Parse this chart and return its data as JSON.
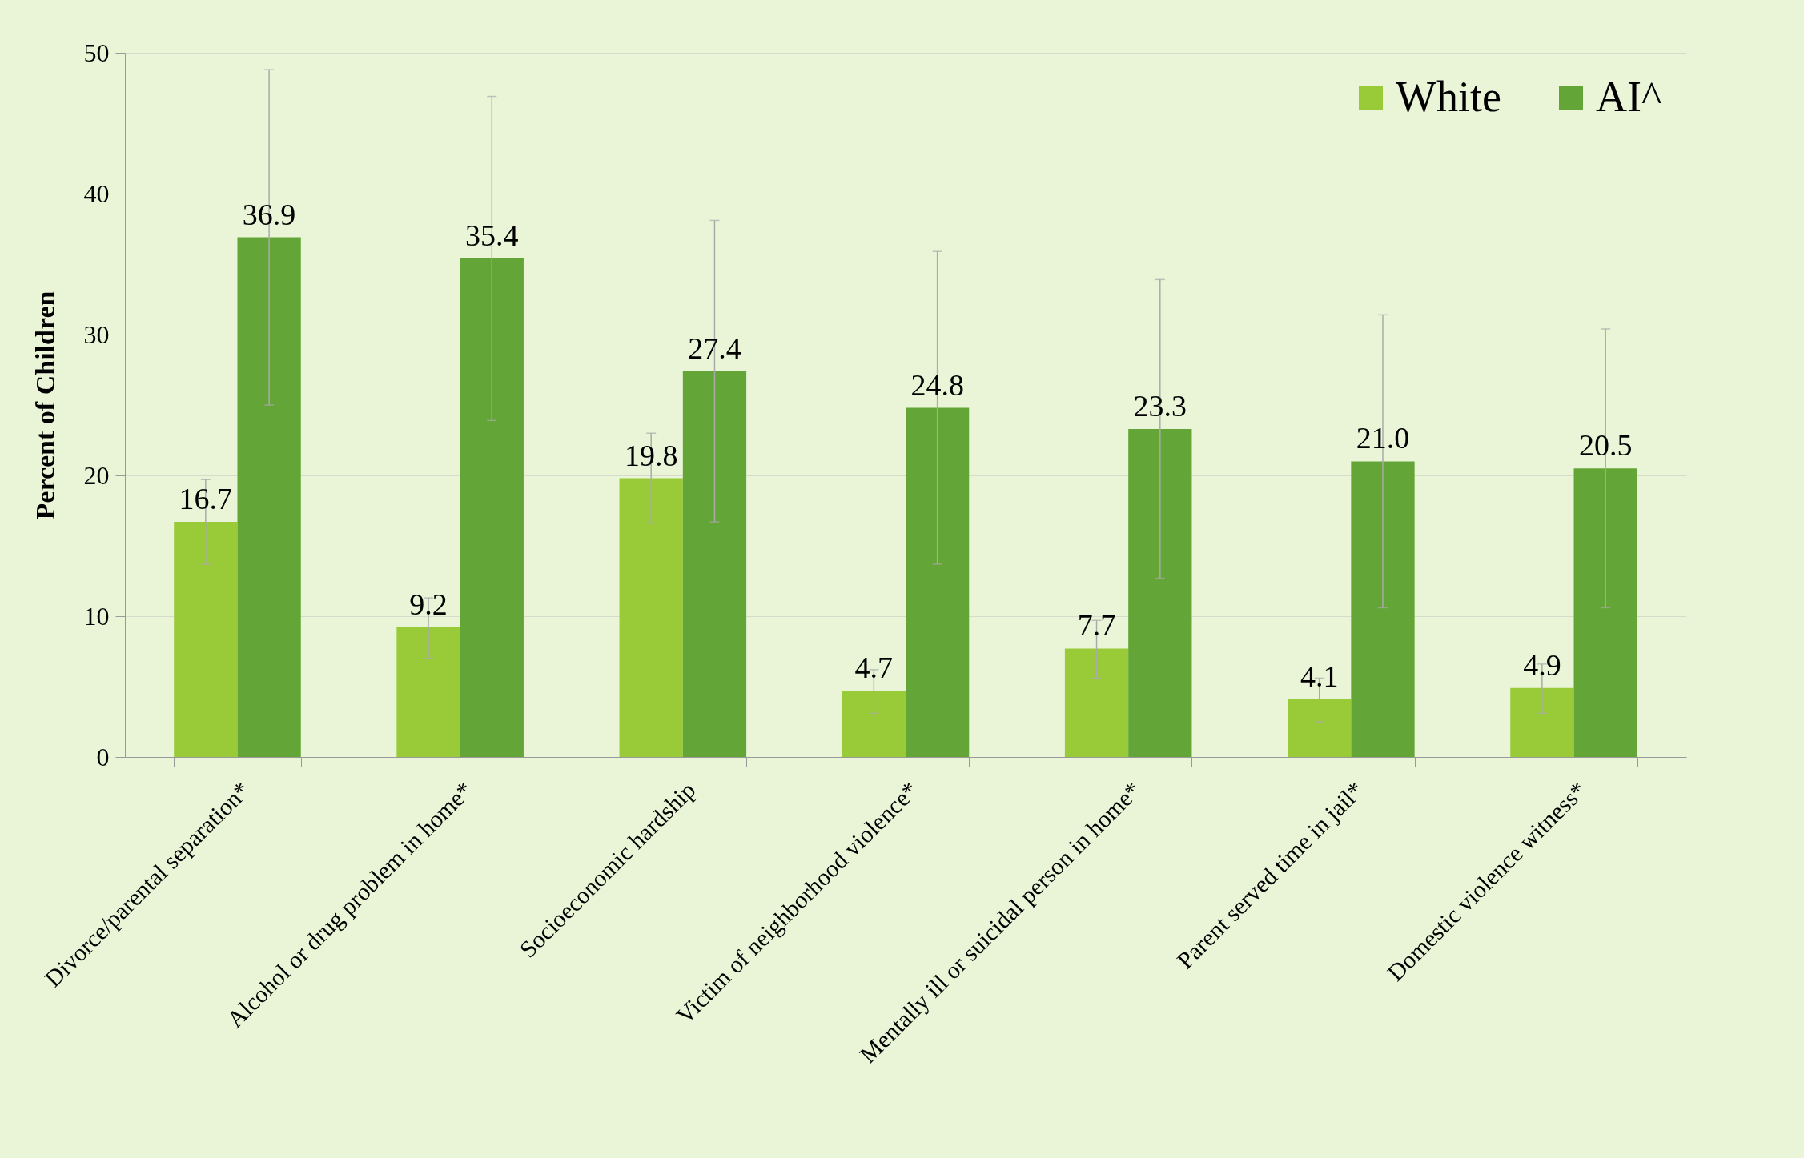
{
  "chart_data": {
    "type": "bar",
    "ylabel": "Percent of Children",
    "categories": [
      "Divorce/parental separation*",
      "Alcohol or drug problem in home*",
      "Socioeconomic hardship",
      "Victim of neighborhood violence*",
      "Mentally ill or suicidal person in home*",
      "Parent served time in jail*",
      "Domestic violence witness*"
    ],
    "series": [
      {
        "name": "White",
        "color": "#99cb38",
        "values": [
          16.7,
          9.2,
          19.8,
          4.7,
          7.7,
          4.1,
          4.9
        ],
        "value_labels": [
          "16.7",
          "9.2",
          "19.8",
          "4.7",
          "7.7",
          "4.1",
          "4.9"
        ],
        "errors": [
          [
            13.7,
            19.7
          ],
          [
            7.0,
            11.3
          ],
          [
            16.6,
            23.0
          ],
          [
            3.1,
            6.2
          ],
          [
            5.6,
            9.7
          ],
          [
            2.5,
            5.6
          ],
          [
            3.1,
            6.6
          ]
        ]
      },
      {
        "name": "AI^",
        "color": "#63a536",
        "values": [
          36.9,
          35.4,
          27.4,
          24.8,
          23.3,
          21.0,
          20.5
        ],
        "value_labels": [
          "36.9",
          "35.4",
          "27.4",
          "24.8",
          "23.3",
          "21.0",
          "20.5"
        ],
        "errors": [
          [
            25.0,
            48.8
          ],
          [
            23.9,
            46.9
          ],
          [
            16.7,
            38.1
          ],
          [
            13.7,
            35.9
          ],
          [
            12.7,
            33.9
          ],
          [
            10.6,
            31.4
          ],
          [
            10.6,
            30.4
          ]
        ]
      }
    ],
    "ylim": [
      0,
      50
    ],
    "yticks": [
      0,
      10,
      20,
      30,
      40,
      50
    ],
    "grid": "y",
    "legend": "top right"
  }
}
